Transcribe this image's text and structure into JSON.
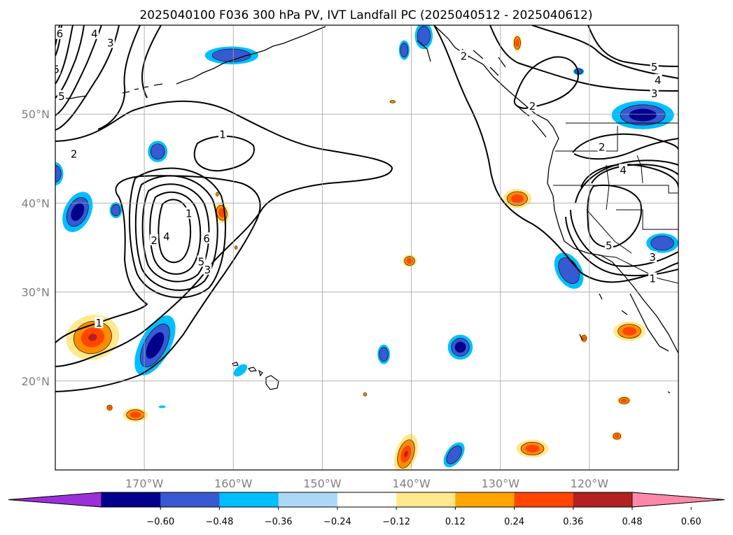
{
  "map": {
    "title": "2025040100 F036 300 hPa PV, IVT Landfall PC (2025040512 - 2025040612)",
    "projection": "PlateCarree",
    "extent": {
      "lon_min": -180,
      "lon_max": -110,
      "lat_min": 10,
      "lat_max": 60
    },
    "lon_ticks": [
      {
        "lon": -170,
        "label": "170°W"
      },
      {
        "lon": -160,
        "label": "160°W"
      },
      {
        "lon": -150,
        "label": "150°W"
      },
      {
        "lon": -140,
        "label": "140°W"
      },
      {
        "lon": -130,
        "label": "130°W"
      },
      {
        "lon": -120,
        "label": "120°W"
      }
    ],
    "lat_ticks": [
      {
        "lat": 50,
        "label": "50°N"
      },
      {
        "lat": 40,
        "label": "40°N"
      },
      {
        "lat": 30,
        "label": "30°N"
      },
      {
        "lat": 20,
        "label": "20°N"
      }
    ],
    "gridlines": true,
    "tick_label_color": "#808080",
    "contour_labels": [
      {
        "text": "1",
        "lon": -161.2,
        "lat": 47.7
      },
      {
        "text": "2",
        "lon": -177.9,
        "lat": 45.5
      },
      {
        "text": "5",
        "lon": -179.3,
        "lat": 52.0
      },
      {
        "text": "5",
        "lon": -179.9,
        "lat": 55.0
      },
      {
        "text": "4",
        "lon": -175.6,
        "lat": 59.0
      },
      {
        "text": "3",
        "lon": -173.8,
        "lat": 58.0
      },
      {
        "text": "6",
        "lon": -179.5,
        "lat": 59.0
      },
      {
        "text": "1",
        "lon": -165.0,
        "lat": 38.8
      },
      {
        "text": "2",
        "lon": -168.9,
        "lat": 35.8
      },
      {
        "text": "4",
        "lon": -167.5,
        "lat": 36.2
      },
      {
        "text": "6",
        "lon": -163.0,
        "lat": 36.0
      },
      {
        "text": "5",
        "lon": -163.6,
        "lat": 33.4
      },
      {
        "text": "3",
        "lon": -162.9,
        "lat": 32.5
      },
      {
        "text": "1",
        "lon": -175.1,
        "lat": 26.5
      },
      {
        "text": "2",
        "lon": -134.1,
        "lat": 56.5
      },
      {
        "text": "2",
        "lon": -126.4,
        "lat": 50.9
      },
      {
        "text": "5",
        "lon": -112.7,
        "lat": 55.3
      },
      {
        "text": "4",
        "lon": -112.3,
        "lat": 53.8
      },
      {
        "text": "3",
        "lon": -112.7,
        "lat": 52.3
      },
      {
        "text": "2",
        "lon": -118.6,
        "lat": 46.3
      },
      {
        "text": "4",
        "lon": -116.2,
        "lat": 43.7
      },
      {
        "text": "5",
        "lon": -117.8,
        "lat": 35.2
      },
      {
        "text": "3",
        "lon": -112.9,
        "lat": 33.9
      },
      {
        "text": "1",
        "lon": -112.9,
        "lat": 31.5
      }
    ],
    "pc_colors": {
      "neg_outer": "#00bfff",
      "neg_mid": "#3759d1",
      "neg_inner": "#00008b",
      "pos_outer": "#ffe98c",
      "pos_mid": "#ff8c00",
      "pos_inner": "#ff4500",
      "pos_core": "#b22222"
    },
    "pc_blobs": [
      {
        "sign": "neg",
        "lon": -160.2,
        "lat": 56.6,
        "rx": 3.0,
        "ry": 1.0,
        "levels": 2
      },
      {
        "sign": "neg",
        "lon": -140.8,
        "lat": 57.2,
        "rx": 0.6,
        "ry": 1.1,
        "levels": 2
      },
      {
        "sign": "neg",
        "lon": -138.6,
        "lat": 58.8,
        "rx": 1.0,
        "ry": 1.5,
        "levels": 2
      },
      {
        "sign": "neg",
        "lon": -121.2,
        "lat": 54.8,
        "rx": 0.6,
        "ry": 0.4,
        "levels": 2
      },
      {
        "sign": "neg",
        "lon": -114.0,
        "lat": 49.9,
        "rx": 3.5,
        "ry": 1.6,
        "levels": 3
      },
      {
        "sign": "neg",
        "lon": -111.8,
        "lat": 35.5,
        "rx": 1.8,
        "ry": 1.1,
        "levels": 2
      },
      {
        "sign": "neg",
        "lon": -168.5,
        "lat": 45.8,
        "rx": 1.1,
        "ry": 1.2,
        "levels": 2
      },
      {
        "sign": "neg",
        "lon": -180.0,
        "lat": 43.3,
        "rx": 0.9,
        "ry": 1.3,
        "levels": 2
      },
      {
        "sign": "neg",
        "lon": -173.2,
        "lat": 39.2,
        "rx": 0.7,
        "ry": 0.9,
        "levels": 2
      },
      {
        "sign": "neg",
        "lon": -177.5,
        "lat": 39.0,
        "rx": 1.5,
        "ry": 2.4,
        "rot": 25,
        "levels": 3
      },
      {
        "sign": "neg",
        "lon": -168.8,
        "lat": 24.0,
        "rx": 1.7,
        "ry": 3.7,
        "rot": 28,
        "levels": 3
      },
      {
        "sign": "neg",
        "lon": -122.3,
        "lat": 32.4,
        "rx": 1.4,
        "ry": 2.2,
        "rot": -30,
        "levels": 2
      },
      {
        "sign": "neg",
        "lon": -143.1,
        "lat": 23.0,
        "rx": 0.7,
        "ry": 1.1,
        "levels": 2
      },
      {
        "sign": "neg",
        "lon": -134.5,
        "lat": 23.8,
        "rx": 1.4,
        "ry": 1.4,
        "levels": 3
      },
      {
        "sign": "neg",
        "lon": -159.2,
        "lat": 21.2,
        "rx": 0.5,
        "ry": 0.9,
        "rot": 50,
        "levels": 1
      },
      {
        "sign": "neg",
        "lon": -135.2,
        "lat": 11.7,
        "rx": 0.9,
        "ry": 1.6,
        "rot": 35,
        "levels": 2
      },
      {
        "sign": "neg",
        "lon": -168.0,
        "lat": 17.1,
        "rx": 0.4,
        "ry": 0.15,
        "levels": 1
      },
      {
        "sign": "pos",
        "lon": -175.8,
        "lat": 24.9,
        "rx": 3.0,
        "ry": 2.5,
        "rot": -15,
        "levels": 4
      },
      {
        "sign": "pos",
        "lon": -161.3,
        "lat": 38.9,
        "rx": 0.8,
        "ry": 1.2,
        "rot": -15,
        "levels": 3
      },
      {
        "sign": "pos",
        "lon": -161.8,
        "lat": 41.0,
        "rx": 0.2,
        "ry": 0.3,
        "levels": 2
      },
      {
        "sign": "pos",
        "lon": -159.7,
        "lat": 35.0,
        "rx": 0.2,
        "ry": 0.25,
        "levels": 2
      },
      {
        "sign": "pos",
        "lon": -142.1,
        "lat": 51.4,
        "rx": 0.4,
        "ry": 0.2,
        "levels": 2
      },
      {
        "sign": "pos",
        "lon": -140.2,
        "lat": 33.5,
        "rx": 0.8,
        "ry": 0.7,
        "levels": 3
      },
      {
        "sign": "pos",
        "lon": -128.1,
        "lat": 58.0,
        "rx": 0.5,
        "ry": 1.0,
        "levels": 3
      },
      {
        "sign": "pos",
        "lon": -128.1,
        "lat": 40.5,
        "rx": 1.6,
        "ry": 1.1,
        "levels": 3
      },
      {
        "sign": "pos",
        "lon": -115.5,
        "lat": 25.6,
        "rx": 1.8,
        "ry": 1.1,
        "levels": 3
      },
      {
        "sign": "pos",
        "lon": -120.6,
        "lat": 24.8,
        "rx": 0.4,
        "ry": 0.5,
        "levels": 3
      },
      {
        "sign": "pos",
        "lon": -116.1,
        "lat": 17.8,
        "rx": 0.8,
        "ry": 0.5,
        "levels": 3
      },
      {
        "sign": "pos",
        "lon": -116.9,
        "lat": 13.8,
        "rx": 0.6,
        "ry": 0.5,
        "levels": 3
      },
      {
        "sign": "pos",
        "lon": -126.4,
        "lat": 12.4,
        "rx": 1.8,
        "ry": 1.0,
        "levels": 3
      },
      {
        "sign": "pos",
        "lon": -140.6,
        "lat": 11.8,
        "rx": 1.2,
        "ry": 2.3,
        "rot": 18,
        "levels": 4
      },
      {
        "sign": "pos",
        "lon": -171.0,
        "lat": 16.2,
        "rx": 1.4,
        "ry": 0.8,
        "levels": 3
      },
      {
        "sign": "pos",
        "lon": -173.9,
        "lat": 17.0,
        "rx": 0.4,
        "ry": 0.4,
        "levels": 3
      },
      {
        "sign": "pos",
        "lon": -145.2,
        "lat": 18.5,
        "rx": 0.25,
        "ry": 0.25,
        "levels": 2
      }
    ]
  },
  "colorbar": {
    "extend": "both",
    "colors": [
      "#9b30d9",
      "#00008b",
      "#3759d1",
      "#00bfff",
      "#add8f5",
      "#ffffff",
      "#ffe98c",
      "#ffa500",
      "#ff4500",
      "#b22222",
      "#ff88aa"
    ],
    "tick_labels": [
      "−0.60",
      "−0.48",
      "−0.36",
      "−0.24",
      "−0.12",
      "0.12",
      "0.24",
      "0.36",
      "0.48",
      "0.60"
    ]
  }
}
